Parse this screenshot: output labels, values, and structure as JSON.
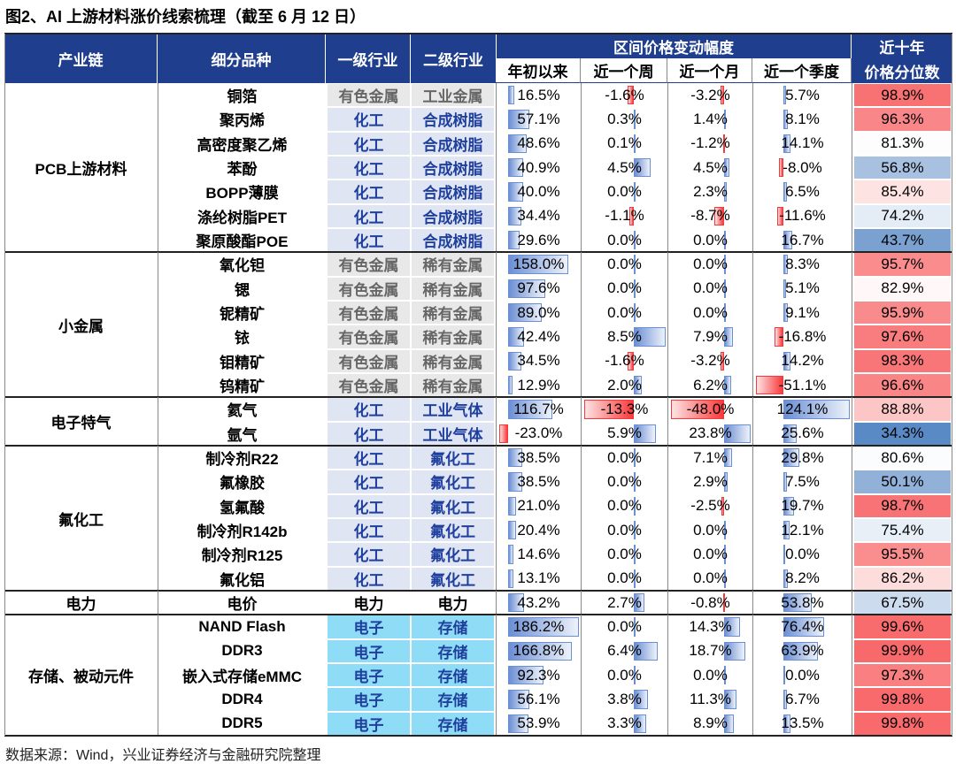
{
  "title": "图2、AI 上游材料涨价线索梳理（截至 6 月 12 日）",
  "table": {
    "header": {
      "chain": "产业链",
      "item": "细分品种",
      "level1": "一级行业",
      "level2": "二级行业",
      "range_group": "区间价格变动幅度",
      "range_cols": [
        "年初以来",
        "近一个周",
        "近一个月",
        "近一个季度"
      ],
      "pct_group": "近十年",
      "pct_col": "价格分位数"
    },
    "groups": [
      {
        "name": "PCB上游材料",
        "rows": [
          {
            "item": "铜箔",
            "l1": "有色金属",
            "l2": "工业金属",
            "style": "metal",
            "changes": [
              "16.5%",
              "-1.6%",
              "-3.2%",
              "5.7%"
            ],
            "percentile": "98.9%"
          },
          {
            "item": "聚丙烯",
            "l1": "化工",
            "l2": "合成树脂",
            "style": "chem",
            "changes": [
              "57.1%",
              "0.3%",
              "1.4%",
              "8.1%"
            ],
            "percentile": "96.3%"
          },
          {
            "item": "高密度聚乙烯",
            "l1": "化工",
            "l2": "合成树脂",
            "style": "chem",
            "changes": [
              "48.6%",
              "0.1%",
              "-1.2%",
              "14.1%"
            ],
            "percentile": "81.3%"
          },
          {
            "item": "苯酚",
            "l1": "化工",
            "l2": "合成树脂",
            "style": "chem",
            "changes": [
              "40.9%",
              "4.5%",
              "4.5%",
              "-8.0%"
            ],
            "percentile": "56.8%"
          },
          {
            "item": "BOPP薄膜",
            "l1": "化工",
            "l2": "合成树脂",
            "style": "chem",
            "changes": [
              "40.0%",
              "0.0%",
              "2.3%",
              "6.5%"
            ],
            "percentile": "85.4%"
          },
          {
            "item": "涤纶树脂PET",
            "l1": "化工",
            "l2": "合成树脂",
            "style": "chem",
            "changes": [
              "34.4%",
              "-1.1%",
              "-8.7%",
              "-11.6%"
            ],
            "percentile": "74.2%"
          },
          {
            "item": "聚原酸酯POE",
            "l1": "化工",
            "l2": "合成树脂",
            "style": "chem",
            "changes": [
              "29.6%",
              "0.0%",
              "0.0%",
              "16.7%"
            ],
            "percentile": "43.7%"
          }
        ]
      },
      {
        "name": "小金属",
        "rows": [
          {
            "item": "氧化钽",
            "l1": "有色金属",
            "l2": "稀有金属",
            "style": "metal",
            "changes": [
              "158.0%",
              "0.0%",
              "0.0%",
              "8.3%"
            ],
            "percentile": "95.7%"
          },
          {
            "item": "锶",
            "l1": "有色金属",
            "l2": "稀有金属",
            "style": "metal",
            "changes": [
              "97.6%",
              "0.0%",
              "0.0%",
              "5.1%"
            ],
            "percentile": "82.9%"
          },
          {
            "item": "铌精矿",
            "l1": "有色金属",
            "l2": "稀有金属",
            "style": "metal",
            "changes": [
              "89.0%",
              "0.0%",
              "0.0%",
              "9.1%"
            ],
            "percentile": "95.9%"
          },
          {
            "item": "铱",
            "l1": "有色金属",
            "l2": "稀有金属",
            "style": "metal",
            "changes": [
              "42.4%",
              "8.5%",
              "7.9%",
              "-16.8%"
            ],
            "percentile": "97.6%"
          },
          {
            "item": "钼精矿",
            "l1": "有色金属",
            "l2": "稀有金属",
            "style": "metal",
            "changes": [
              "34.5%",
              "-1.6%",
              "-3.2%",
              "14.2%"
            ],
            "percentile": "98.3%"
          },
          {
            "item": "钨精矿",
            "l1": "有色金属",
            "l2": "稀有金属",
            "style": "metal",
            "changes": [
              "12.9%",
              "2.0%",
              "6.2%",
              "-51.1%"
            ],
            "percentile": "96.6%"
          }
        ]
      },
      {
        "name": "电子特气",
        "rows": [
          {
            "item": "氦气",
            "l1": "化工",
            "l2": "工业气体",
            "style": "chem",
            "changes": [
              "116.7%",
              "-13.3%",
              "-48.0%",
              "124.1%"
            ],
            "percentile": "88.8%"
          },
          {
            "item": "氩气",
            "l1": "化工",
            "l2": "工业气体",
            "style": "chem",
            "changes": [
              "-23.0%",
              "5.9%",
              "23.8%",
              "25.6%"
            ],
            "percentile": "34.3%"
          }
        ]
      },
      {
        "name": "氟化工",
        "rows": [
          {
            "item": "制冷剂R22",
            "l1": "化工",
            "l2": "氟化工",
            "style": "chem",
            "changes": [
              "38.5%",
              "0.0%",
              "7.1%",
              "29.8%"
            ],
            "percentile": "80.6%"
          },
          {
            "item": "氟橡胶",
            "l1": "化工",
            "l2": "氟化工",
            "style": "chem",
            "changes": [
              "38.5%",
              "0.0%",
              "2.9%",
              "7.5%"
            ],
            "percentile": "50.1%"
          },
          {
            "item": "氢氟酸",
            "l1": "化工",
            "l2": "氟化工",
            "style": "chem",
            "changes": [
              "21.0%",
              "0.0%",
              "-2.5%",
              "19.7%"
            ],
            "percentile": "98.7%"
          },
          {
            "item": "制冷剂R142b",
            "l1": "化工",
            "l2": "氟化工",
            "style": "chem",
            "changes": [
              "20.4%",
              "0.0%",
              "0.0%",
              "12.1%"
            ],
            "percentile": "75.4%"
          },
          {
            "item": "制冷剂R125",
            "l1": "化工",
            "l2": "氟化工",
            "style": "chem",
            "changes": [
              "14.6%",
              "0.0%",
              "0.0%",
              "0.0%"
            ],
            "percentile": "95.5%"
          },
          {
            "item": "氟化铝",
            "l1": "化工",
            "l2": "氟化工",
            "style": "chem",
            "changes": [
              "13.1%",
              "0.0%",
              "0.0%",
              "8.2%"
            ],
            "percentile": "86.2%"
          }
        ]
      },
      {
        "name": "电力",
        "rows": [
          {
            "item": "电价",
            "l1": "电力",
            "l2": "电力",
            "style": "power",
            "changes": [
              "43.2%",
              "2.7%",
              "-0.8%",
              "53.8%"
            ],
            "percentile": "67.5%"
          }
        ]
      },
      {
        "name": "存储、被动元件",
        "rows": [
          {
            "item": "NAND Flash",
            "l1": "电子",
            "l2": "存储",
            "style": "elec",
            "changes": [
              "186.2%",
              "0.0%",
              "14.3%",
              "76.4%"
            ],
            "percentile": "99.6%"
          },
          {
            "item": "DDR3",
            "l1": "电子",
            "l2": "存储",
            "style": "elec",
            "changes": [
              "166.8%",
              "6.4%",
              "18.7%",
              "63.9%"
            ],
            "percentile": "99.9%"
          },
          {
            "item": "嵌入式存储eMMC",
            "l1": "电子",
            "l2": "存储",
            "style": "elec",
            "changes": [
              "92.3%",
              "0.0%",
              "0.0%",
              "0.0%"
            ],
            "percentile": "97.3%"
          },
          {
            "item": "DDR4",
            "l1": "电子",
            "l2": "存储",
            "style": "elec",
            "changes": [
              "56.1%",
              "3.8%",
              "11.3%",
              "6.7%"
            ],
            "percentile": "99.8%"
          },
          {
            "item": "DDR5",
            "l1": "电子",
            "l2": "存储",
            "style": "elec",
            "changes": [
              "53.9%",
              "3.3%",
              "8.9%",
              "13.5%"
            ],
            "percentile": "99.8%"
          }
        ]
      }
    ]
  },
  "footer": "数据来源：Wind，兴业证券经济与金融研究院整理"
}
